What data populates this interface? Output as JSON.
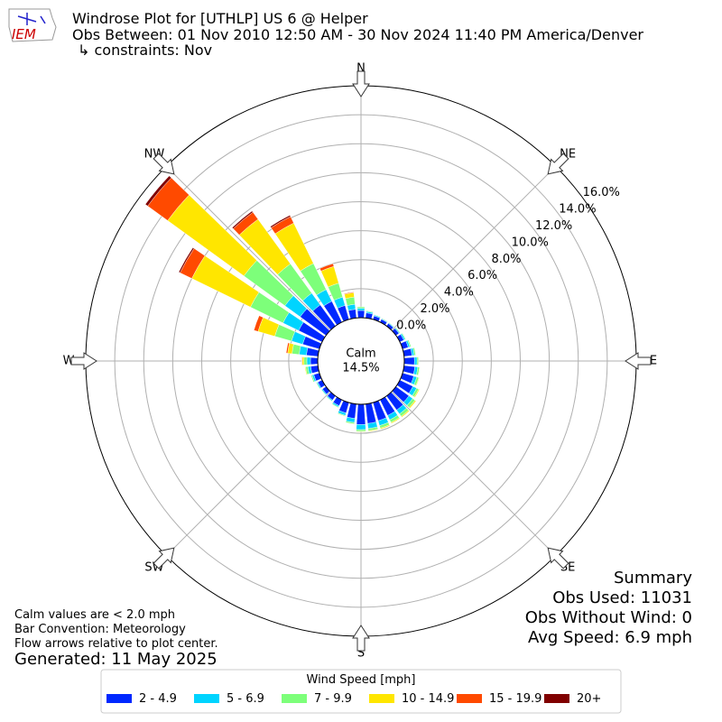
{
  "chart_data": {
    "type": "windrose",
    "title_lines": [
      "Windrose Plot for [UTHLP] US 6 @ Helper",
      "Obs Between: 01 Nov 2010 12:50 AM - 30 Nov 2024 11:40 PM America/Denver",
      "↳ constraints: Nov"
    ],
    "logo_text": "IEM",
    "compass": {
      "labels": [
        "N",
        "NE",
        "E",
        "SE",
        "S",
        "SW",
        "W",
        "NW"
      ],
      "bearings": [
        0,
        45,
        90,
        135,
        180,
        225,
        270,
        315
      ]
    },
    "directions": [
      0,
      10,
      20,
      30,
      40,
      50,
      60,
      70,
      80,
      90,
      100,
      110,
      120,
      130,
      140,
      150,
      160,
      170,
      180,
      190,
      200,
      210,
      220,
      230,
      240,
      250,
      260,
      270,
      280,
      290,
      300,
      310,
      320,
      330,
      340,
      350
    ],
    "rlim": [
      0,
      16
    ],
    "rticks": [
      {
        "value": 0,
        "label": "0.0%"
      },
      {
        "value": 2,
        "label": "2.0%"
      },
      {
        "value": 4,
        "label": "4.0%"
      },
      {
        "value": 6,
        "label": "6.0%"
      },
      {
        "value": 8,
        "label": "8.0%"
      },
      {
        "value": 10,
        "label": "10.0%"
      },
      {
        "value": 12,
        "label": "12.0%"
      },
      {
        "value": 14,
        "label": "14.0%"
      },
      {
        "value": 16,
        "label": "16.0%"
      }
    ],
    "calm_label": "Calm",
    "calm_value": 14.5,
    "calm_value_label": "14.5%",
    "legend_title": "Wind Speed [mph]",
    "series": [
      {
        "name": "2 - 4.9",
        "color": "#0028ff",
        "values": [
          0.5,
          0.35,
          0.25,
          0.22,
          0.22,
          0.25,
          0.3,
          0.4,
          0.55,
          0.7,
          0.75,
          0.8,
          1.0,
          1.1,
          1.2,
          1.2,
          1.3,
          1.35,
          1.4,
          1.0,
          0.75,
          0.45,
          0.35,
          0.3,
          0.33,
          0.4,
          0.5,
          0.5,
          0.8,
          1.2,
          1.8,
          2.2,
          1.8,
          1.6,
          1.0,
          0.6
        ]
      },
      {
        "name": "5 - 6.9",
        "color": "#00d4ff",
        "values": [
          0.15,
          0.1,
          0.07,
          0.05,
          0.05,
          0.06,
          0.1,
          0.12,
          0.15,
          0.18,
          0.2,
          0.22,
          0.28,
          0.32,
          0.33,
          0.33,
          0.35,
          0.35,
          0.35,
          0.28,
          0.17,
          0.1,
          0.07,
          0.07,
          0.08,
          0.12,
          0.2,
          0.25,
          0.5,
          0.8,
          1.2,
          1.3,
          1.0,
          0.9,
          0.6,
          0.35
        ]
      },
      {
        "name": "7 - 9.9",
        "color": "#7dff7a",
        "values": [
          0.1,
          0.05,
          0.03,
          0.03,
          0.03,
          0.04,
          0.05,
          0.08,
          0.1,
          0.1,
          0.12,
          0.14,
          0.16,
          0.2,
          0.2,
          0.2,
          0.18,
          0.15,
          0.12,
          0.1,
          0.06,
          0.05,
          0.03,
          0.03,
          0.04,
          0.08,
          0.15,
          0.2,
          0.5,
          1.2,
          2.5,
          3.5,
          2.5,
          2.0,
          1.0,
          0.5
        ]
      },
      {
        "name": "10 - 14.9",
        "color": "#ffe600",
        "values": [
          0,
          0,
          0,
          0,
          0,
          0,
          0,
          0,
          0,
          0.02,
          0.03,
          0.04,
          0.06,
          0.08,
          0.07,
          0.07,
          0.07,
          0.05,
          0.03,
          0.02,
          0.02,
          0,
          0,
          0,
          0,
          0,
          0.05,
          0.12,
          0.3,
          1.2,
          4.5,
          6.5,
          3.8,
          3.1,
          1.2,
          0.3
        ]
      },
      {
        "name": "15 - 19.9",
        "color": "#ff4a00",
        "values": [
          0,
          0,
          0,
          0,
          0,
          0,
          0,
          0,
          0,
          0,
          0,
          0,
          0,
          0,
          0,
          0,
          0,
          0,
          0,
          0,
          0,
          0,
          0,
          0,
          0,
          0,
          0,
          0.03,
          0.1,
          0.3,
          0.9,
          1.7,
          0.6,
          0.5,
          0.2,
          0.05
        ]
      },
      {
        "name": "20+",
        "color": "#800000",
        "values": [
          0,
          0,
          0,
          0,
          0,
          0,
          0,
          0,
          0,
          0,
          0,
          0,
          0,
          0,
          0,
          0,
          0,
          0,
          0,
          0,
          0,
          0,
          0,
          0,
          0,
          0,
          0,
          0,
          0,
          0,
          0.1,
          0.2,
          0.1,
          0.1,
          0,
          0
        ]
      }
    ],
    "notes": [
      "Calm values are < 2.0 mph",
      "Bar Convention: Meteorology",
      "Flow arrows relative to plot center."
    ],
    "generated": "Generated: 11 May 2025",
    "summary": [
      "Summary",
      "Obs Used: 11031",
      "Obs Without Wind: 0",
      "Avg Speed: 6.9 mph"
    ]
  }
}
